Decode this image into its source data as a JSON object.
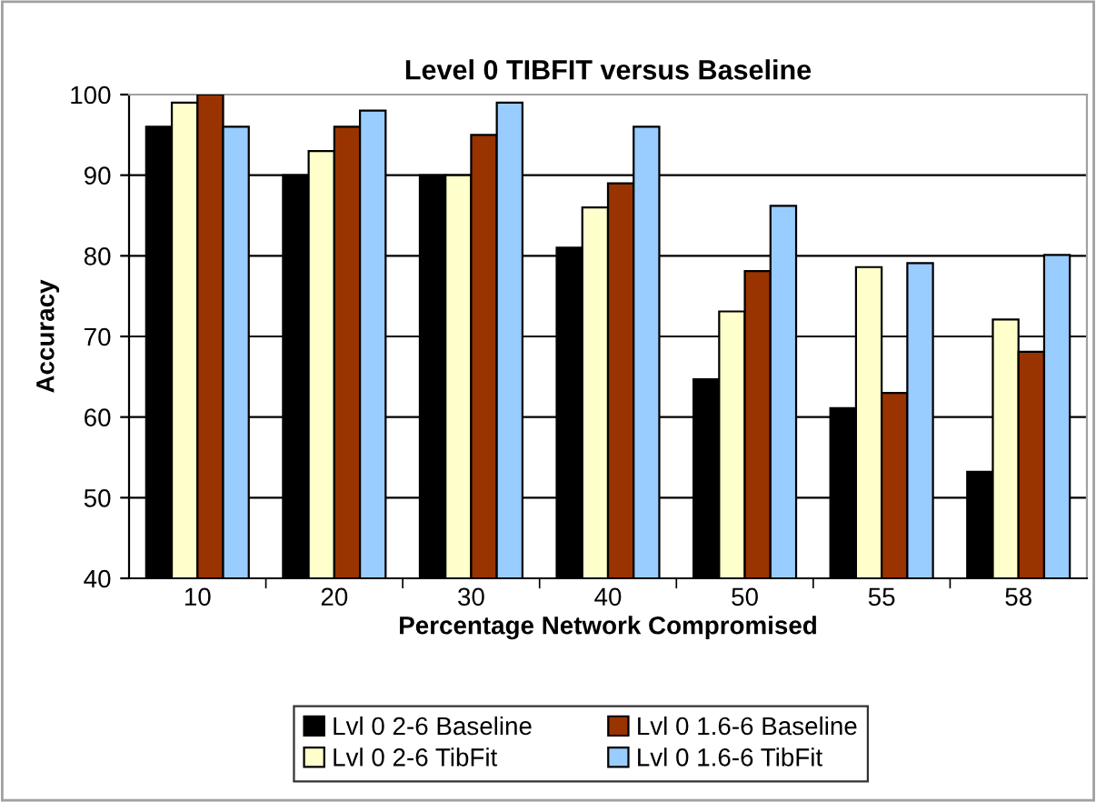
{
  "chart_data": {
    "type": "bar",
    "title": "Level 0 TIBFIT versus Baseline",
    "xlabel": "Percentage Network Compromised",
    "ylabel": "Accuracy",
    "categories": [
      "10",
      "20",
      "30",
      "40",
      "50",
      "55",
      "58"
    ],
    "series": [
      {
        "name": "Lvl 0 2-6 Baseline",
        "color": "#000000",
        "values": [
          96,
          90,
          90,
          81,
          64.7,
          61.1,
          53.2
        ]
      },
      {
        "name": "Lvl 0 2-6 TibFit",
        "color": "#ffffcc",
        "values": [
          99,
          93,
          90,
          86,
          73.1,
          78.6,
          72.1
        ]
      },
      {
        "name": "Lvl 0 1.6-6 Baseline",
        "color": "#993300",
        "values": [
          100,
          96,
          95,
          89,
          78.1,
          63,
          68.1
        ]
      },
      {
        "name": "Lvl 0 1.6-6 TibFit",
        "color": "#99ccff",
        "values": [
          96,
          98,
          99,
          96,
          86.2,
          79.1,
          80.1
        ]
      }
    ],
    "ylim": [
      40,
      100
    ],
    "yticks": [
      40,
      50,
      60,
      70,
      80,
      90,
      100
    ],
    "grid": "y",
    "legend": "bottom"
  }
}
